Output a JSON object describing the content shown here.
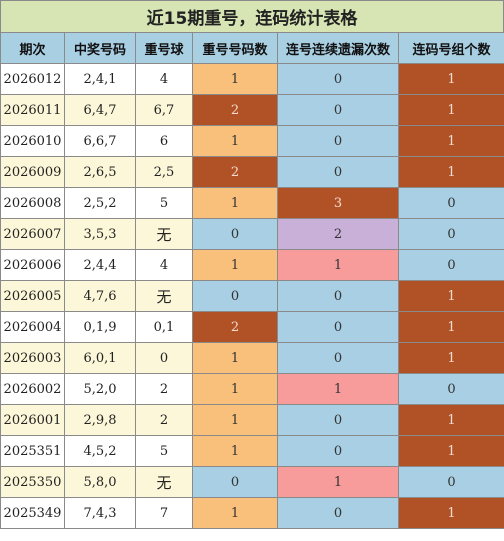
{
  "title": "近15期重号，连码统计表格",
  "headers": [
    "期次",
    "中奖号码",
    "重号球",
    "重号号码数",
    "连号连续遗漏次数",
    "连码号组个数"
  ],
  "rows": [
    {
      "period": "2026012",
      "draw": "2,4,1",
      "repeat": "4",
      "repeat_count": "1",
      "consec_miss": "0",
      "consec_groups": "1"
    },
    {
      "period": "2026011",
      "draw": "6,4,7",
      "repeat": "6,7",
      "repeat_count": "2",
      "consec_miss": "0",
      "consec_groups": "1"
    },
    {
      "period": "2026010",
      "draw": "6,6,7",
      "repeat": "6",
      "repeat_count": "1",
      "consec_miss": "0",
      "consec_groups": "1"
    },
    {
      "period": "2026009",
      "draw": "2,6,5",
      "repeat": "2,5",
      "repeat_count": "2",
      "consec_miss": "0",
      "consec_groups": "1"
    },
    {
      "period": "2026008",
      "draw": "2,5,2",
      "repeat": "5",
      "repeat_count": "1",
      "consec_miss": "3",
      "consec_groups": "0"
    },
    {
      "period": "2026007",
      "draw": "3,5,3",
      "repeat": "无",
      "repeat_count": "0",
      "consec_miss": "2",
      "consec_groups": "0"
    },
    {
      "period": "2026006",
      "draw": "2,4,4",
      "repeat": "4",
      "repeat_count": "1",
      "consec_miss": "1",
      "consec_groups": "0"
    },
    {
      "period": "2026005",
      "draw": "4,7,6",
      "repeat": "无",
      "repeat_count": "0",
      "consec_miss": "0",
      "consec_groups": "1"
    },
    {
      "period": "2026004",
      "draw": "0,1,9",
      "repeat": "0,1",
      "repeat_count": "2",
      "consec_miss": "0",
      "consec_groups": "1"
    },
    {
      "period": "2026003",
      "draw": "6,0,1",
      "repeat": "0",
      "repeat_count": "1",
      "consec_miss": "0",
      "consec_groups": "1"
    },
    {
      "period": "2026002",
      "draw": "5,2,0",
      "repeat": "2",
      "repeat_count": "1",
      "consec_miss": "1",
      "consec_groups": "0"
    },
    {
      "period": "2026001",
      "draw": "2,9,8",
      "repeat": "2",
      "repeat_count": "1",
      "consec_miss": "0",
      "consec_groups": "1"
    },
    {
      "period": "2025351",
      "draw": "4,5,2",
      "repeat": "5",
      "repeat_count": "1",
      "consec_miss": "0",
      "consec_groups": "1"
    },
    {
      "period": "2025350",
      "draw": "5,8,0",
      "repeat": "无",
      "repeat_count": "0",
      "consec_miss": "1",
      "consec_groups": "0"
    },
    {
      "period": "2025349",
      "draw": "7,4,3",
      "repeat": "7",
      "repeat_count": "1",
      "consec_miss": "0",
      "consec_groups": "1"
    }
  ],
  "colors": {
    "title_bg": "#d6e5b3",
    "header_bg": "#a9cfe3",
    "row_alt_bg": "#fcf7d8",
    "level_orange": "#f8c07a",
    "level_brown": "#b05226",
    "level_blue": "#a8cfe3",
    "level_pink": "#f79b9b",
    "level_purple": "#c9b0d9"
  }
}
